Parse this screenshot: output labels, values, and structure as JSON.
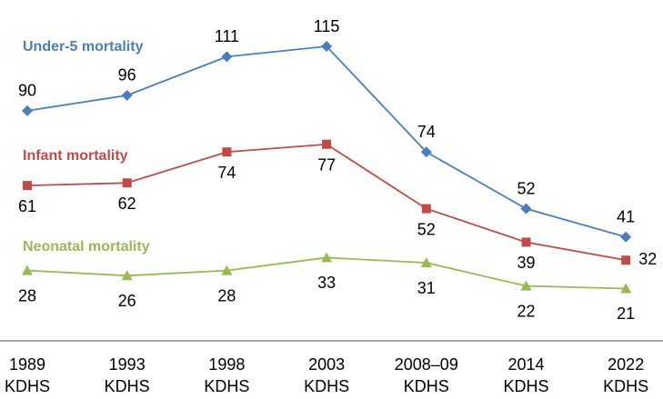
{
  "chart_data": {
    "type": "line",
    "categories": [
      "1989 KDHS",
      "1993 KDHS",
      "1998 KDHS",
      "2003 KDHS",
      "2008–09 KDHS",
      "2014 KDHS",
      "2022 KDHS"
    ],
    "series": [
      {
        "name": "Under-5 mortality",
        "color": "#4a7ebb",
        "marker": "diamond",
        "values": [
          90,
          96,
          111,
          115,
          74,
          52,
          41
        ]
      },
      {
        "name": "Infant mortality",
        "color": "#be4b48",
        "marker": "square",
        "values": [
          61,
          62,
          74,
          77,
          52,
          39,
          32
        ]
      },
      {
        "name": "Neonatal mortality",
        "color": "#98b954",
        "marker": "triangle",
        "values": [
          28,
          26,
          28,
          33,
          31,
          22,
          21
        ]
      }
    ],
    "ylim": [
      0,
      133
    ]
  }
}
